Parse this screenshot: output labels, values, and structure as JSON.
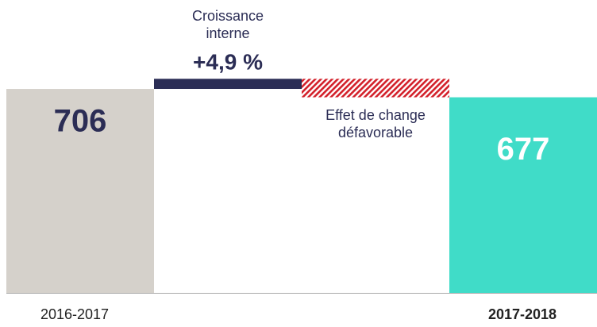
{
  "chart_data": {
    "type": "waterfall",
    "categories": [
      "2016-2017",
      "Croissance interne",
      "Effet de change défavorable",
      "2017-2018"
    ],
    "values": [
      706,
      35,
      -64,
      677
    ],
    "value_labels": [
      "706",
      null,
      null,
      "677"
    ],
    "growth_label": "+4,9 %",
    "colors": [
      "#d5d1cb",
      "#2b2d55",
      "#d3202a",
      "#40dcc8"
    ],
    "ylim": [
      0,
      1000
    ]
  }
}
